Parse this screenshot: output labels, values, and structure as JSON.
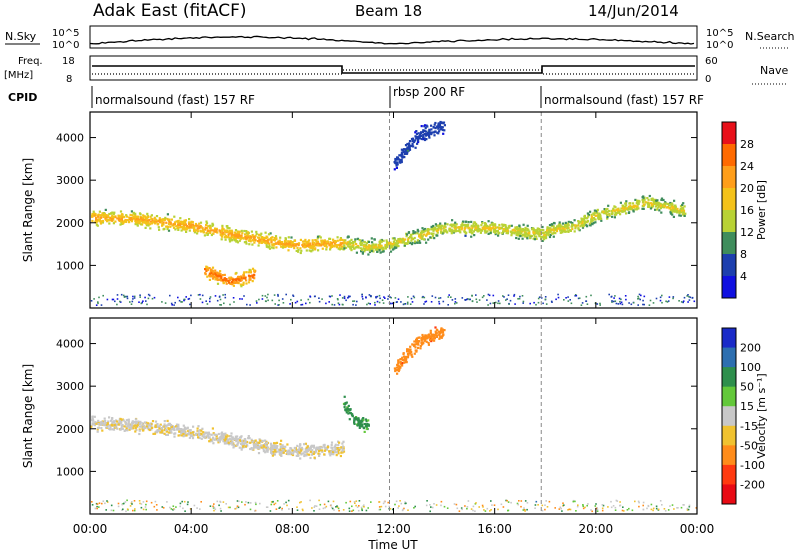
{
  "header": {
    "radar": "Adak East (fitACF)",
    "beam": "Beam 18",
    "date": "14/Jun/2014"
  },
  "sky_panel": {
    "left_label": "N.Sky",
    "right_label": "N.Search",
    "tick_top": "10^5",
    "tick_bottom": "10^0"
  },
  "freq_panel": {
    "left_label": "Freq.",
    "left_unit": "[MHz]",
    "right_label": "Nave",
    "left_ticks": [
      "18",
      "8"
    ],
    "right_ticks": [
      "60",
      "0"
    ]
  },
  "cpid": {
    "label": "CPID",
    "segments": [
      {
        "name": "normalsound (fast) 157 RF",
        "start_h": 0,
        "end_h": 12
      },
      {
        "name": "rbsp 200 RF",
        "start_h": 12,
        "end_h": 18
      },
      {
        "name": "normalsound (fast) 157 RF",
        "start_h": 18,
        "end_h": 24
      }
    ]
  },
  "power_colorbar": {
    "label": "Power [dB]",
    "ticks": [
      "28",
      "24",
      "20",
      "16",
      "12",
      "8",
      "4"
    ],
    "colors": [
      "#e8101a",
      "#ff6a00",
      "#ff9e1a",
      "#f4c21a",
      "#b8d235",
      "#3f8d5c",
      "#1d3fae",
      "#1010e0"
    ]
  },
  "velocity_colorbar": {
    "label": "Velocity [m s⁻¹]",
    "ticks": [
      "200",
      "100",
      "50",
      "15",
      "-15",
      "-50",
      "-100",
      "-200"
    ],
    "colors": [
      "#1a2bc8",
      "#2d6fb0",
      "#2e8f4c",
      "#63c83a",
      "#c8c8c8",
      "#f0c230",
      "#ff8c1a",
      "#ff3a10",
      "#e80a14"
    ]
  },
  "chart_data": [
    {
      "type": "heatmap",
      "name_panel": "power",
      "xlabel": "",
      "ylabel": "Slant Range [km]",
      "ylim": [
        0,
        4600
      ],
      "xlim_hours": [
        0,
        24
      ],
      "y_ticks": [
        1000,
        2000,
        3000,
        4000
      ],
      "bands": [
        {
          "t": [
            0,
            2,
            4,
            6,
            8,
            10
          ],
          "range": [
            2150,
            2100,
            1950,
            1700,
            1500,
            1550
          ],
          "level": 18
        },
        {
          "t": [
            10,
            11,
            12,
            14,
            16,
            18
          ],
          "range": [
            1550,
            1450,
            1550,
            1900,
            1900,
            1750
          ],
          "level": 14
        },
        {
          "t": [
            18,
            19,
            20,
            22,
            23.5
          ],
          "range": [
            1850,
            1900,
            2200,
            2500,
            2300
          ],
          "level": 14
        },
        {
          "t": [
            4.5,
            5.5,
            6.5
          ],
          "range": [
            900,
            650,
            800
          ],
          "level": 22
        },
        {
          "t": [
            12,
            13,
            14
          ],
          "range": [
            3400,
            4100,
            4300
          ],
          "level": 6
        }
      ]
    },
    {
      "type": "heatmap",
      "name_panel": "velocity",
      "xlabel": "Time UT",
      "ylabel": "Slant Range [km]",
      "ylim": [
        0,
        4600
      ],
      "xlim_hours": [
        0,
        24
      ],
      "x_ticks": [
        "00:00",
        "04:00",
        "08:00",
        "12:00",
        "16:00",
        "20:00",
        "00:00"
      ],
      "y_ticks": [
        1000,
        2000,
        3000,
        4000
      ],
      "bands": [
        {
          "t": [
            0,
            2,
            4,
            6,
            8,
            10
          ],
          "range": [
            2150,
            2100,
            1950,
            1700,
            1500,
            1550
          ],
          "v": -10
        },
        {
          "t": [
            12,
            13,
            14
          ],
          "range": [
            3400,
            4100,
            4300
          ],
          "v": -60
        },
        {
          "t": [
            10,
            10.5,
            11
          ],
          "range": [
            2600,
            2200,
            2100
          ],
          "v": 40
        }
      ]
    }
  ]
}
